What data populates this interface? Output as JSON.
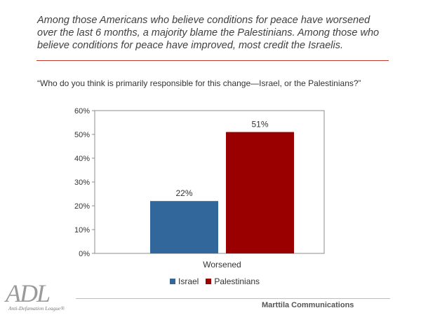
{
  "headline": "Among those Americans who believe conditions for peace have worsened over the last 6 months, a majority blame the Palestinians. Among those who believe conditions for peace have improved, most credit the Israelis.",
  "question": "“Who do you think is primarily responsible for this change—Israel, or the Palestinians?”",
  "logo": {
    "letters": "ADL",
    "subtitle": "Anti-Defamation League®"
  },
  "credit": "Marttila Communications",
  "colors": {
    "israel": "#31679a",
    "palestinians": "#9b0000",
    "rule_top": "#c0392b"
  },
  "chart_data": {
    "type": "bar",
    "categories": [
      "Worsened"
    ],
    "series": [
      {
        "name": "Israel",
        "values": [
          22
        ],
        "label": "22%"
      },
      {
        "name": "Palestinians",
        "values": [
          51
        ],
        "label": "51%"
      }
    ],
    "yticks": [
      "0%",
      "10%",
      "20%",
      "30%",
      "40%",
      "50%",
      "60%"
    ],
    "ylim": [
      0,
      60
    ],
    "grid": false,
    "legend_placement": "bottom"
  }
}
